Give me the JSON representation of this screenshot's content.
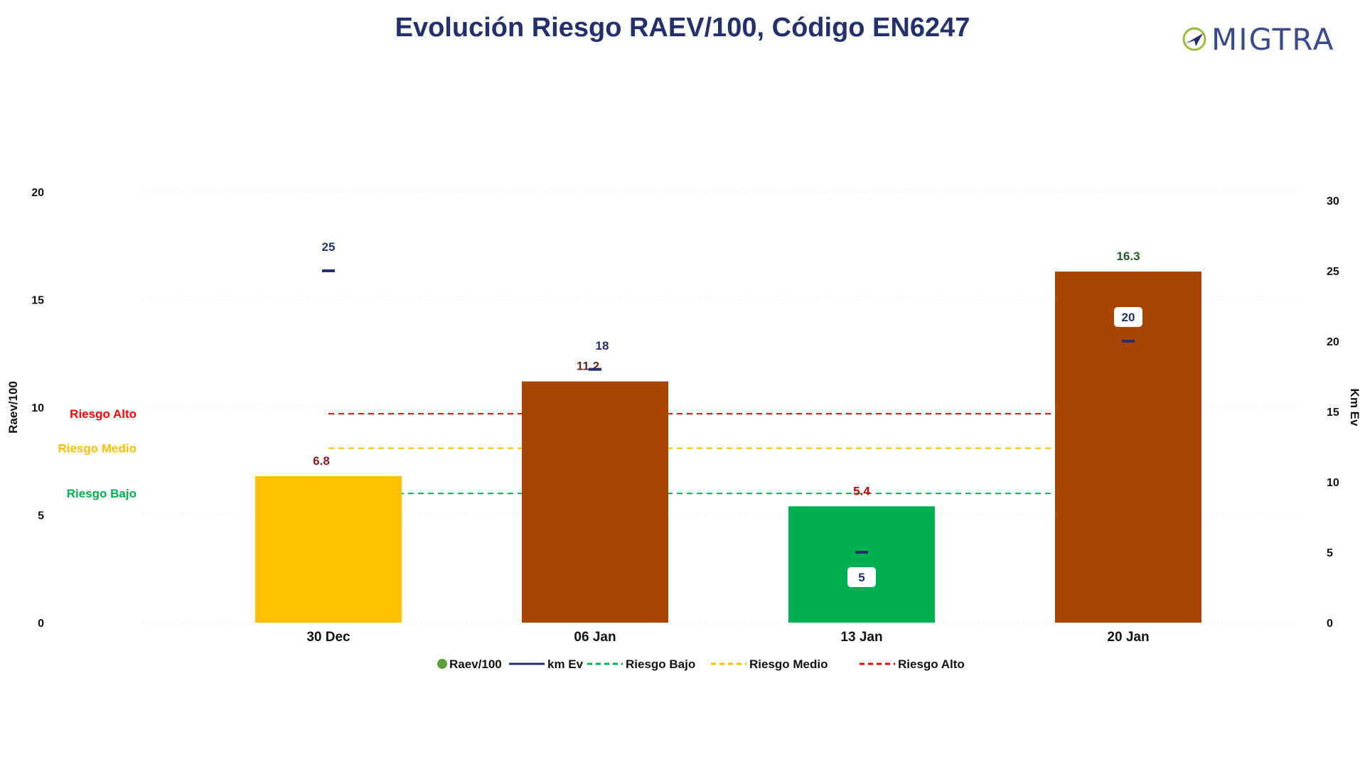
{
  "chart_data": {
    "type": "bar",
    "title": "Evolución Riesgo RAEV/100, Código EN6247",
    "categories": [
      "30 Dec",
      "06 Jan",
      "13 Jan",
      "20 Jan"
    ],
    "series": [
      {
        "name": "Raev/100",
        "axis": "left",
        "values": [
          6.8,
          11.2,
          5.4,
          16.3
        ],
        "value_labels": [
          "6.8",
          "11.2",
          "5.4",
          "16.3"
        ],
        "colors": [
          "#FFC000",
          "#A94500",
          "#00B050",
          "#A94500"
        ],
        "label_colors": [
          "#8B1A1A",
          "#5a2a1a",
          "#C00000",
          "#1f5a2a"
        ]
      },
      {
        "name": "km Ev",
        "axis": "right",
        "values": [
          25,
          18,
          5,
          20
        ],
        "value_labels": [
          "25",
          "18",
          "5",
          "20"
        ],
        "color": "#24306b"
      }
    ],
    "thresholds": [
      {
        "name": "Riesgo Bajo",
        "value": 6,
        "color": "#00B050"
      },
      {
        "name": "Riesgo Medio",
        "value": 8.1,
        "color": "#FFC000"
      },
      {
        "name": "Riesgo Alto",
        "value": 9.7,
        "color": "#FF0000"
      }
    ],
    "ylabel": "Raev/100",
    "ylim": [
      0,
      20
    ],
    "yticks": [
      "0",
      "5",
      "10",
      "15",
      "20"
    ],
    "y2label": "Km Ev",
    "y2lim": [
      0,
      30
    ],
    "y2ticks": [
      "0",
      "5",
      "10",
      "15",
      "20",
      "25",
      "30"
    ],
    "legend_position": "bottom-center",
    "grid": false
  },
  "logo": {
    "text": "MIGTRA",
    "primary_color": "#3a4a8a",
    "accent_color": "#9bbb3c"
  }
}
